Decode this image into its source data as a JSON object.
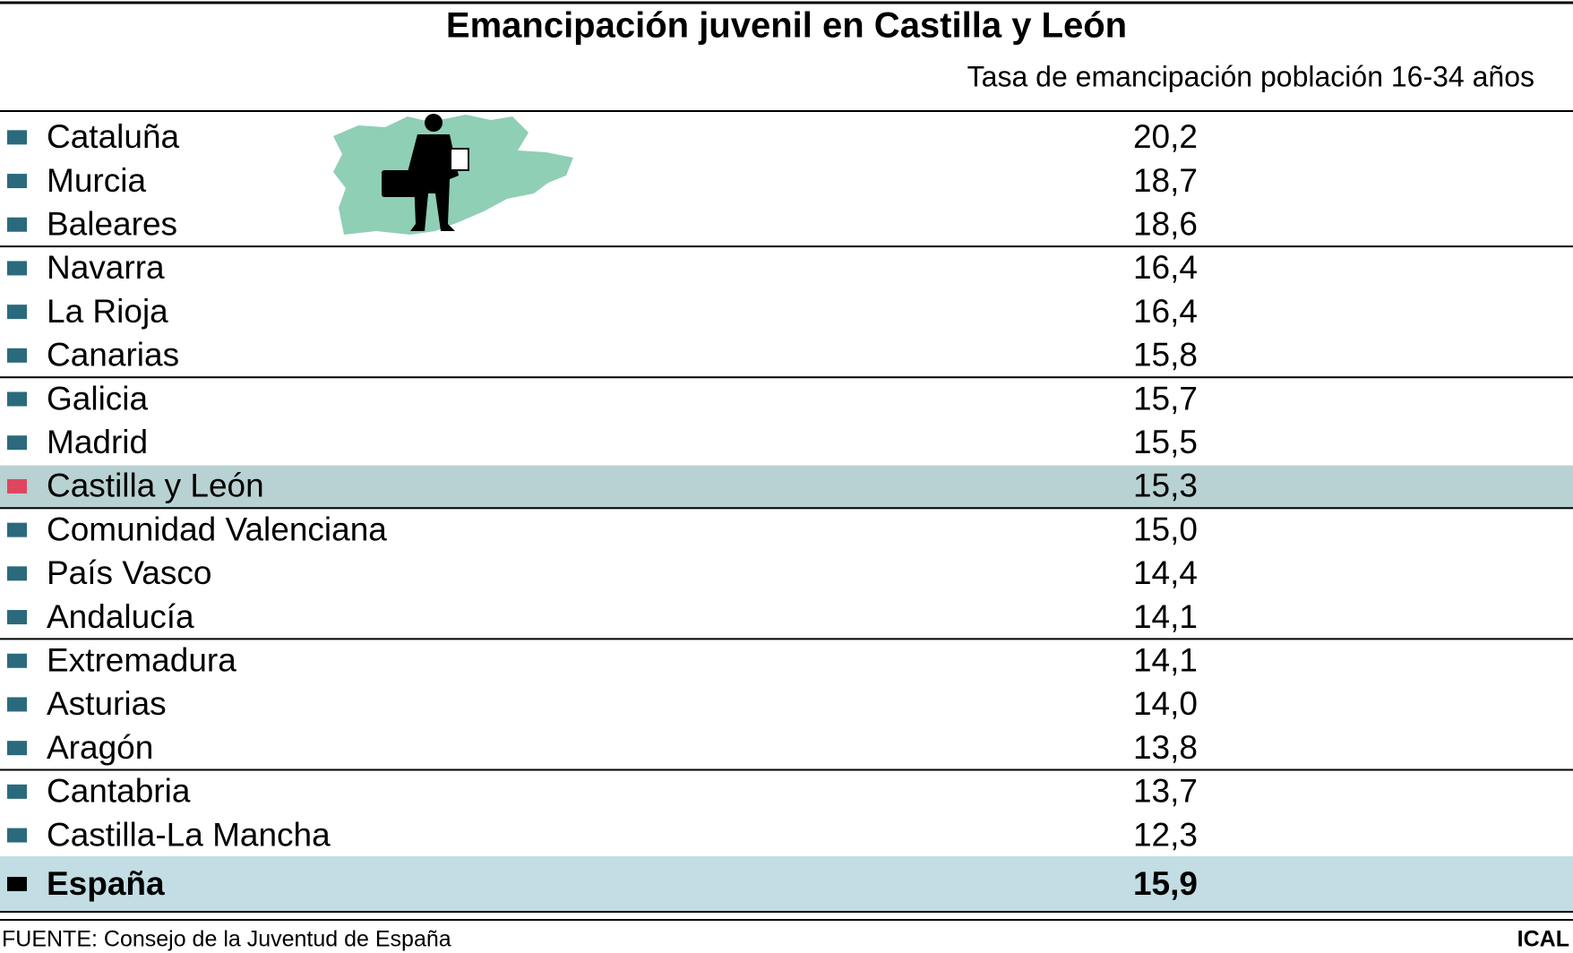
{
  "header": {
    "title": "Emancipación juvenil en Castilla y León",
    "subtitle": "Tasa de emancipación población 16-34 años"
  },
  "table": {
    "rows": [
      [
        "Cataluña",
        "20,2"
      ],
      [
        "Murcia",
        "18,7"
      ],
      [
        "Baleares",
        "18,6"
      ],
      [
        "Navarra",
        "16,4"
      ],
      [
        "La Rioja",
        "16,4"
      ],
      [
        "Canarias",
        "15,8"
      ],
      [
        "Galicia",
        "15,7"
      ],
      [
        "Madrid",
        "15,5"
      ],
      [
        "Castilla y León",
        "15,3"
      ],
      [
        "Comunidad Valenciana",
        "15,0"
      ],
      [
        "País Vasco",
        "14,4"
      ],
      [
        "Andalucía",
        "14,1"
      ],
      [
        "Extremadura",
        "14,1"
      ],
      [
        "Asturias",
        "14,0"
      ],
      [
        "Aragón",
        "13,8"
      ],
      [
        "Cantabria",
        "13,7"
      ],
      [
        "Castilla-La Mancha",
        "12,3"
      ]
    ],
    "total": [
      "España",
      "15,9"
    ]
  },
  "footer": {
    "source": "FUENTE: Consejo de la Juventud de España",
    "credit": "ICAL"
  }
}
